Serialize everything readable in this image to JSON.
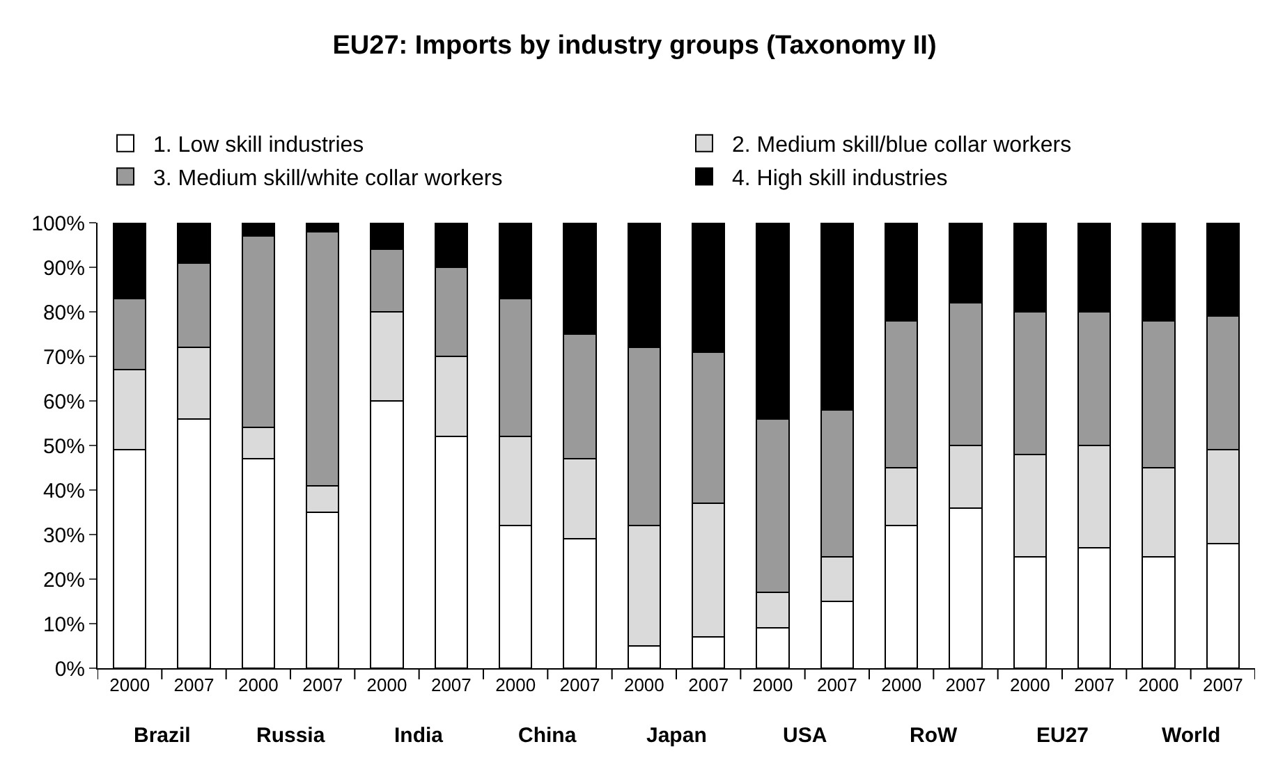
{
  "chart_data": {
    "type": "bar",
    "stacked": true,
    "title": "EU27: Imports by industry groups (Taxonomy II)",
    "categories": [
      "2000",
      "2007",
      "2000",
      "2007",
      "2000",
      "2007",
      "2000",
      "2007",
      "2000",
      "2007",
      "2000",
      "2007",
      "2000",
      "2007",
      "2000",
      "2007",
      "2000",
      "2007"
    ],
    "series": [
      {
        "name": "1. Low skill industries",
        "color": "#ffffff",
        "values": [
          49,
          56,
          47,
          35,
          60,
          52,
          32,
          29,
          5,
          7,
          9,
          15,
          32,
          36,
          25,
          27,
          25,
          28
        ]
      },
      {
        "name": "2. Medium skill/blue collar workers",
        "color": "#dadada",
        "values": [
          18,
          16,
          7,
          6,
          20,
          18,
          20,
          18,
          27,
          30,
          8,
          10,
          13,
          14,
          23,
          23,
          20,
          21
        ]
      },
      {
        "name": "3. Medium skill/white collar workers",
        "color": "#9a9a9a",
        "values": [
          16,
          19,
          43,
          57,
          14,
          20,
          31,
          28,
          40,
          34,
          39,
          33,
          33,
          32,
          32,
          30,
          33,
          30
        ]
      },
      {
        "name": "4. High skill industries",
        "color": "#000000",
        "values": [
          17,
          9,
          3,
          2,
          6,
          10,
          17,
          25,
          28,
          29,
          44,
          42,
          22,
          18,
          20,
          20,
          22,
          21
        ]
      }
    ],
    "annotations": [
      "Brazil",
      "Russia",
      "India",
      "China",
      "Japan",
      "USA",
      "RoW",
      "EU27",
      "World"
    ],
    "ylim": [
      0,
      100
    ],
    "yticks": [
      {
        "value": 0,
        "label": "0%"
      },
      {
        "value": 10,
        "label": "10%"
      },
      {
        "value": 20,
        "label": "20%"
      },
      {
        "value": 30,
        "label": "30%"
      },
      {
        "value": 40,
        "label": "40%"
      },
      {
        "value": 50,
        "label": "50%"
      },
      {
        "value": 60,
        "label": "60%"
      },
      {
        "value": 70,
        "label": "70%"
      },
      {
        "value": 80,
        "label": "80%"
      },
      {
        "value": 90,
        "label": "90%"
      },
      {
        "value": 100,
        "label": "100%"
      }
    ],
    "grid": false,
    "legend": "top"
  }
}
